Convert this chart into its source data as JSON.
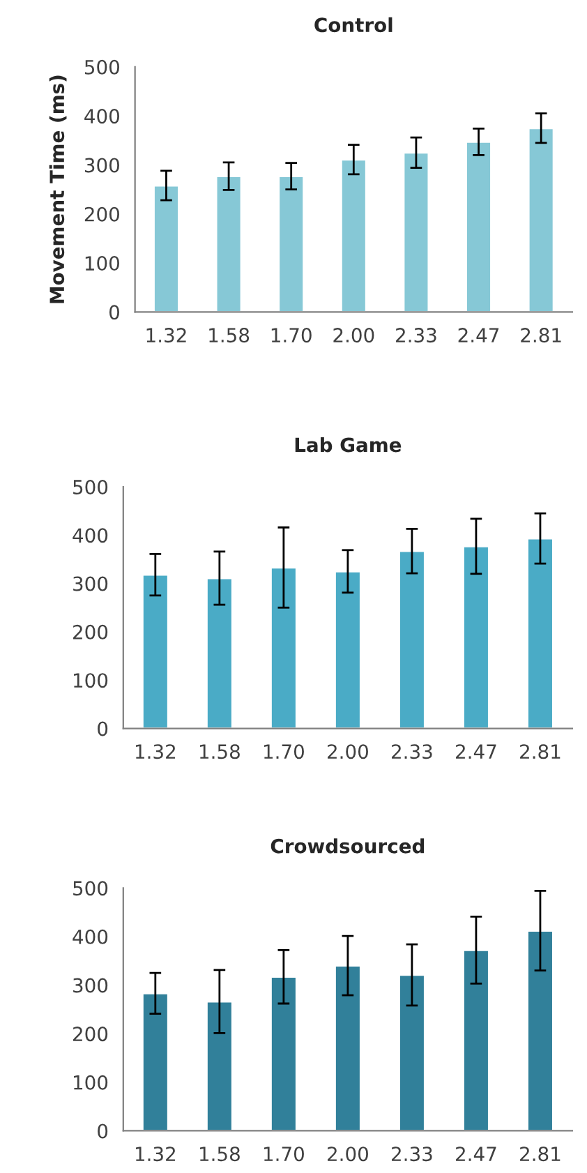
{
  "chart_data": [
    {
      "type": "bar",
      "title": "Control",
      "ylabel": "Movement Time (ms)",
      "categories": [
        "1.32",
        "1.58",
        "1.70",
        "2.00",
        "2.33",
        "2.47",
        "2.81"
      ],
      "color": "#86c8d6",
      "values": [
        258,
        277,
        277,
        311,
        325,
        347,
        375
      ],
      "errors": [
        30,
        28,
        27,
        30,
        31,
        27,
        30
      ],
      "ylim": [
        0,
        500
      ],
      "yticks": [
        0,
        100,
        200,
        300,
        400,
        500
      ],
      "grid": false,
      "legend": false
    },
    {
      "type": "bar",
      "title": "Lab Game",
      "categories": [
        "1.32",
        "1.58",
        "1.70",
        "2.00",
        "2.33",
        "2.47",
        "2.81"
      ],
      "color": "#4aabc6",
      "values": [
        318,
        311,
        333,
        325,
        367,
        377,
        393
      ],
      "errors": [
        43,
        55,
        83,
        44,
        46,
        57,
        52
      ],
      "ylim": [
        0,
        500
      ],
      "yticks": [
        0,
        100,
        200,
        300,
        400,
        500
      ],
      "grid": false,
      "legend": false
    },
    {
      "type": "bar",
      "title": "Crowdsourced",
      "categories": [
        "1.32",
        "1.58",
        "1.70",
        "2.00",
        "2.33",
        "2.47",
        "2.81"
      ],
      "color": "#31809a",
      "values": [
        283,
        266,
        317,
        340,
        321,
        372,
        412
      ],
      "errors": [
        42,
        65,
        55,
        61,
        63,
        69,
        82
      ],
      "ylim": [
        0,
        500
      ],
      "yticks": [
        0,
        100,
        200,
        300,
        400,
        500
      ],
      "grid": false,
      "legend": false
    }
  ]
}
